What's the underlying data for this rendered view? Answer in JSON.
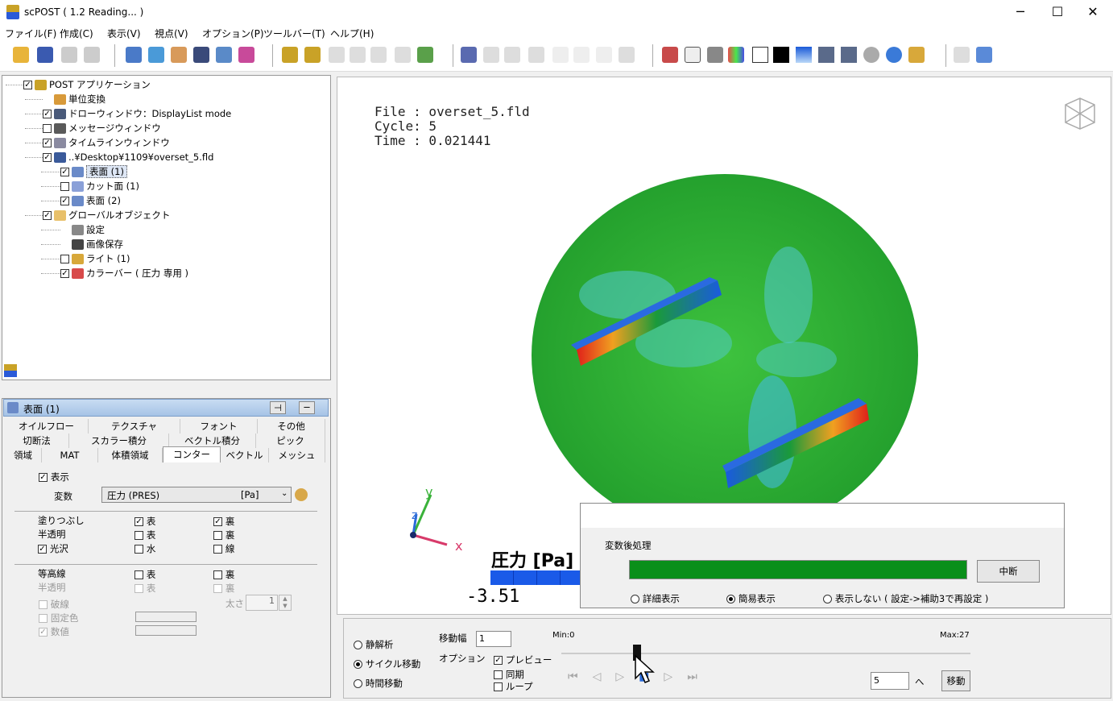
{
  "window": {
    "title": "scPOST ( 1.2 Reading... )",
    "minimize": "─",
    "maximize": "☐",
    "close": "✕"
  },
  "menu": [
    "ファイル(F)",
    "作成(C)",
    "表示(V)",
    "視点(V)",
    "オプション(P)",
    "ツールバー(T)",
    "ヘルプ(H)"
  ],
  "tree": [
    {
      "label": "POST アプリケーション",
      "indent": 0,
      "checked": true,
      "icon": "app-icon"
    },
    {
      "label": "単位変換",
      "indent": 1,
      "checked": null,
      "icon": "unit-icon"
    },
    {
      "label": "ドローウィンドウ：DisplayList mode",
      "indent": 1,
      "checked": true,
      "icon": "draw-window-icon"
    },
    {
      "label": "メッセージウィンドウ",
      "indent": 1,
      "checked": false,
      "icon": "message-window-icon"
    },
    {
      "label": "タイムラインウィンドウ",
      "indent": 1,
      "checked": true,
      "icon": "timeline-icon"
    },
    {
      "label": "..¥Desktop¥1109¥overset_5.fld",
      "indent": 1,
      "checked": true,
      "icon": "file-icon"
    },
    {
      "label": "表面 (1)",
      "indent": 2,
      "checked": true,
      "icon": "surface-icon",
      "selected": true
    },
    {
      "label": "カット面 (1)",
      "indent": 2,
      "checked": false,
      "icon": "cut-plane-icon"
    },
    {
      "label": "表面 (2)",
      "indent": 2,
      "checked": true,
      "icon": "surface-icon"
    },
    {
      "label": "グローバルオブジェクト",
      "indent": 1,
      "checked": true,
      "icon": "folder-icon"
    },
    {
      "label": "設定",
      "indent": 2,
      "checked": null,
      "icon": "settings-icon"
    },
    {
      "label": "画像保存",
      "indent": 2,
      "checked": null,
      "icon": "camera-icon"
    },
    {
      "label": "ライト (1)",
      "indent": 2,
      "checked": false,
      "icon": "light-icon"
    },
    {
      "label": "カラーバー ( 圧力 専用 )",
      "indent": 2,
      "checked": true,
      "icon": "colorbar-icon"
    }
  ],
  "props": {
    "title": "表面 (1)",
    "tabs_row1": [
      "オイルフロー",
      "テクスチャ",
      "フォント",
      "その他"
    ],
    "tabs_row2": [
      "切断法",
      "スカラー積分",
      "ベクトル積分",
      "ピック"
    ],
    "tabs_row3": [
      "領域",
      "MAT",
      "体積領域",
      "コンター",
      "ベクトル",
      "メッシュ"
    ],
    "active_tab": "コンター",
    "display_label": "表示",
    "variable_label": "変数",
    "variable_value": "圧力 (PRES)",
    "variable_unit": "[Pa]",
    "fill_label": "塗りつぶし",
    "translucent_label": "半透明",
    "gloss_label": "光沢",
    "front": "表",
    "back": "裏",
    "water": "水",
    "line": "線",
    "contour_label": "等高線",
    "contour_translucent": "半透明",
    "dashed_label": "破線",
    "fixed_color_label": "固定色",
    "value_label": "数値",
    "thickness_label": "太さ",
    "thickness_value": "1"
  },
  "viewport": {
    "file_line": "File : overset_5.fld",
    "cycle_line": "Cycle: 5",
    "time_line": "Time : 0.021441",
    "axis_y": "y",
    "axis_z": "z",
    "axis_x": "x",
    "legend_title": "圧力 [Pa]",
    "legend_min": "-3.51"
  },
  "dialog": {
    "title": "変数後処理",
    "progress": 1.0,
    "cancel_label": "中断",
    "opt_detail": "詳細表示",
    "opt_simple": "簡易表示",
    "opt_hide": "表示しない ( 設定->補助3で再設定 )",
    "selected": "簡易表示"
  },
  "bottom": {
    "static": "静解析",
    "cycle_move": "サイクル移動",
    "time_move": "時間移動",
    "selected_mode": "サイクル移動",
    "step_label": "移動幅",
    "step_value": "1",
    "option_label": "オプション",
    "preview": "プレビュー",
    "sync": "同期",
    "loop": "ループ",
    "min_label": "Min:0",
    "max_label": "Max:27",
    "slider_value": 5,
    "slider_max": 27,
    "goto_value": "5",
    "goto_suffix": "へ",
    "move_button": "移動"
  },
  "colors": {
    "accent": "#1a7f1a",
    "progress": "#0a8f1a",
    "field": "#2eaa2e"
  }
}
